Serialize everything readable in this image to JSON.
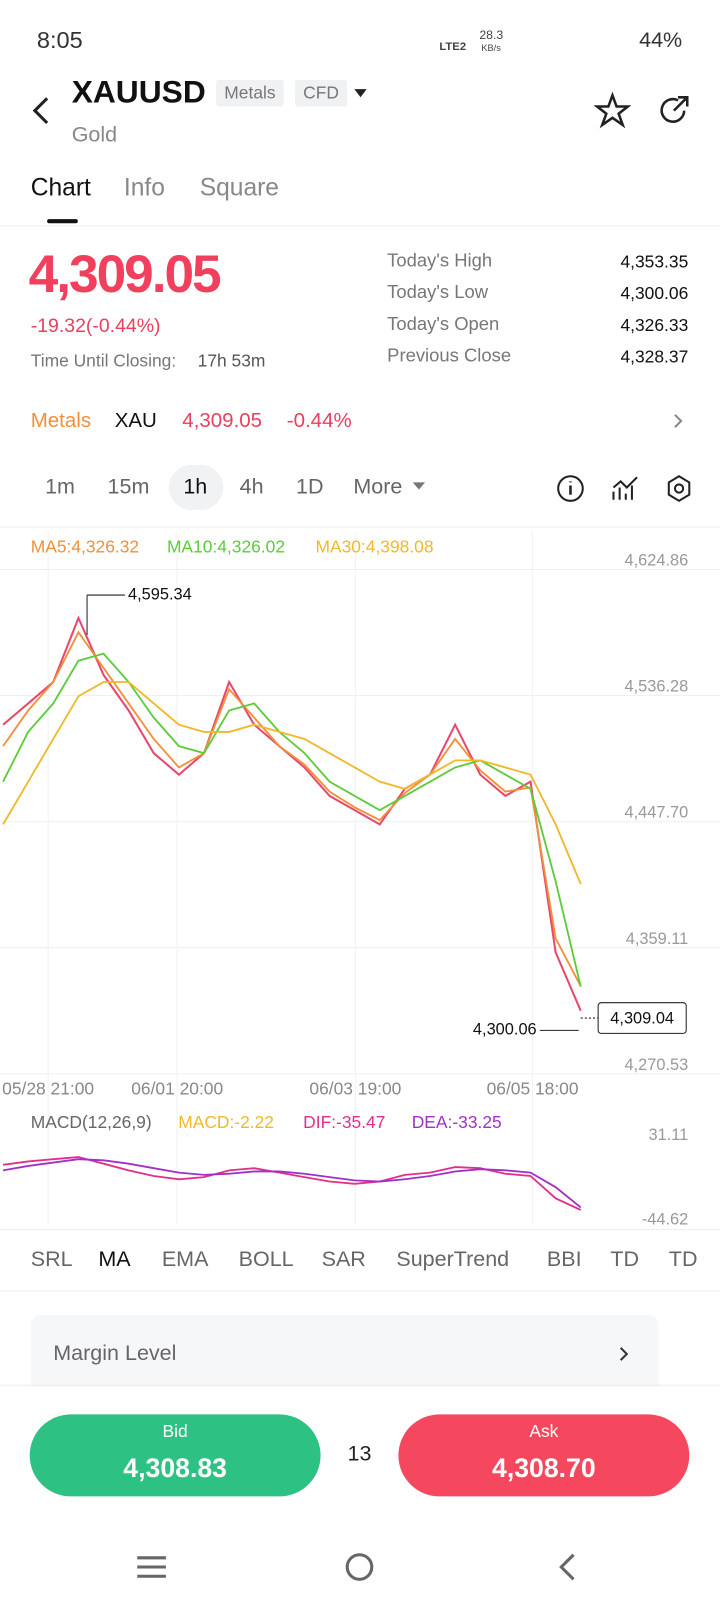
{
  "status_bar": {
    "time": "8:05",
    "network": "LTE2",
    "speed": "28.3",
    "speed_unit": "KB/s",
    "battery": "44%"
  },
  "header": {
    "symbol": "XAUUSD",
    "tags": [
      "Metals",
      "CFD"
    ],
    "name": "Gold"
  },
  "tabs": [
    "Chart",
    "Info",
    "Square"
  ],
  "quote": {
    "price": "4,309.05",
    "change": "-19.32(-0.44%)",
    "closing_label": "Time Until Closing:",
    "closing_value": "17h 53m",
    "stats": [
      {
        "label": "Today's High",
        "value": "4,353.35"
      },
      {
        "label": "Today's Low",
        "value": "4,300.06"
      },
      {
        "label": "Today's Open",
        "value": "4,326.33"
      },
      {
        "label": "Previous Close",
        "value": "4,328.37"
      }
    ]
  },
  "related": {
    "category": "Metals",
    "symbol": "XAU",
    "price": "4,309.05",
    "change": "-0.44%"
  },
  "periods": [
    "1m",
    "15m",
    "1h",
    "4h",
    "1D",
    "More"
  ],
  "chart_data": [
    {
      "type": "line",
      "values": [
        4510,
        4525,
        4540,
        4585,
        4545,
        4520,
        4490,
        4475,
        4490,
        4540,
        4510,
        4495,
        4480,
        4460,
        4450,
        4440,
        4465,
        4475,
        4510,
        4475,
        4460,
        4470,
        4350,
        4309.04
      ],
      "color": "#e8486c",
      "series": [
        {
          "name": "MA5:4,326.32",
          "color": "#f0903a",
          "values": [
            4495,
            4520,
            4540,
            4575,
            4550,
            4525,
            4500,
            4480,
            4490,
            4535,
            4515,
            4495,
            4482,
            4463,
            4452,
            4443,
            4462,
            4475,
            4500,
            4478,
            4463,
            4466,
            4360,
            4326.32
          ]
        },
        {
          "name": "MA10:4,326.02",
          "color": "#5ccc3a",
          "values": [
            4470,
            4505,
            4525,
            4555,
            4560,
            4540,
            4515,
            4495,
            4490,
            4520,
            4525,
            4505,
            4490,
            4470,
            4460,
            4450,
            4460,
            4470,
            4480,
            4485,
            4475,
            4465,
            4400,
            4326.02
          ]
        },
        {
          "name": "MA30:4,398.08",
          "color": "#f0b82a",
          "values": [
            4440,
            4470,
            4500,
            4530,
            4540,
            4540,
            4525,
            4510,
            4505,
            4505,
            4510,
            4505,
            4500,
            4490,
            4480,
            4470,
            4465,
            4475,
            4485,
            4485,
            4480,
            4475,
            4440,
            4398.08
          ]
        }
      ],
      "ylim": [
        4260,
        4640
      ],
      "yticks": [
        {
          "value": 4624.86,
          "label": "4,624.86"
        },
        {
          "value": 4536.28,
          "label": "4,536.28"
        },
        {
          "value": 4447.7,
          "label": "4,447.70"
        },
        {
          "value": 4359.11,
          "label": "4,359.11"
        },
        {
          "value": 4270.53,
          "label": "4,270.53"
        }
      ],
      "x_labels": [
        "05/28 21:00",
        "06/01 20:00",
        "06/03 19:00",
        "06/05 18:00"
      ],
      "annotations": {
        "high": "4,595.34",
        "low": "4,300.06",
        "last": "4,309.04"
      },
      "grid": true
    },
    {
      "type": "line",
      "title": "MACD(12,26,9)",
      "macd_label": "MACD:-2.22",
      "series": [
        {
          "name": "DIF:-35.47",
          "color": "#e0308a",
          "values": [
            5,
            8,
            10,
            12,
            6,
            0,
            -5,
            -8,
            -6,
            0,
            2,
            -2,
            -6,
            -10,
            -12,
            -10,
            -4,
            -2,
            3,
            2,
            -3,
            -5,
            -25,
            -35.47
          ]
        },
        {
          "name": "DEA:-33.25",
          "color": "#a030c8",
          "values": [
            0,
            4,
            7,
            10,
            9,
            6,
            2,
            -2,
            -4,
            -3,
            -1,
            -1,
            -3,
            -6,
            -9,
            -10,
            -8,
            -5,
            -1,
            1,
            0,
            -2,
            -15,
            -33.25
          ]
        }
      ],
      "ylim": [
        -48,
        42
      ],
      "yticks": [
        31.11,
        -44.62
      ]
    }
  ],
  "indicators": [
    "SRL",
    "MA",
    "EMA",
    "BOLL",
    "SAR",
    "SuperTrend",
    "BBI",
    "TD",
    "TD"
  ],
  "margin": "Margin Level",
  "trade": {
    "bid_label": "Bid",
    "bid": "4,308.83",
    "spread": "13",
    "ask_label": "Ask",
    "ask": "4,308.70"
  }
}
